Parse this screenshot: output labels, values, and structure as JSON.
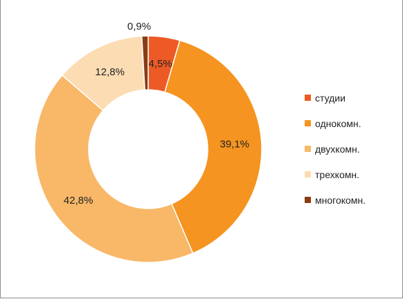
{
  "chart_data": {
    "type": "pie",
    "donut": true,
    "legend_position": "right",
    "categories": [
      "студии",
      "однокомн.",
      "двухкомн.",
      "трехкомн.",
      "многокомн."
    ],
    "values": [
      4.5,
      39.1,
      42.8,
      12.8,
      0.9
    ],
    "value_labels": [
      "4,5%",
      "39,1%",
      "42,8%",
      "12,8%",
      "0,9%"
    ],
    "colors": [
      "#ee5a25",
      "#f59420",
      "#f8b868",
      "#fbdcb3",
      "#8a3c12"
    ],
    "slice_border_color": "#ffffff"
  }
}
